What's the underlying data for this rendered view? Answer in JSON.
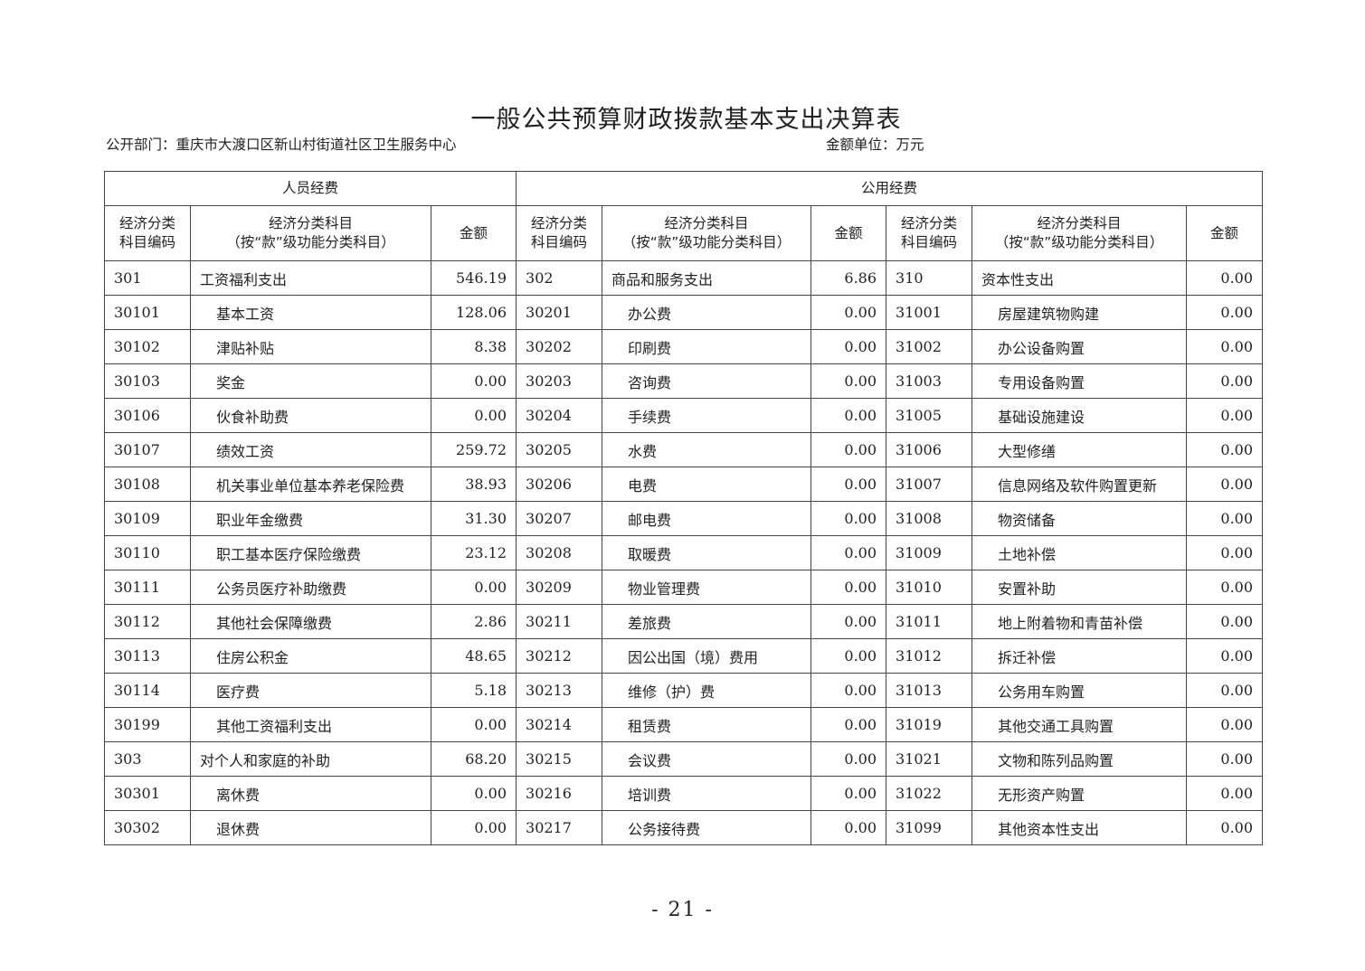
{
  "title": "一般公共预算财政拨款基本支出决算表",
  "department": "公开部门：重庆市大渡口区新山村街道社区卫生服务中心",
  "unit": "金额单位：万元",
  "groups": {
    "personnel": "人员经费",
    "public": "公用经费"
  },
  "headers": {
    "code_line1": "经济分类",
    "code_line2": "科目编码",
    "name_line1": "经济分类科目",
    "name_line2": "（按“款”级功能分类科目）",
    "amount": "金额"
  },
  "rows": [
    [
      [
        "301",
        "工资福利支出",
        "546.19",
        0
      ],
      [
        "302",
        "商品和服务支出",
        "6.86",
        0
      ],
      [
        "310",
        "资本性支出",
        "0.00",
        0
      ]
    ],
    [
      [
        "30101",
        "基本工资",
        "128.06",
        1
      ],
      [
        "30201",
        "办公费",
        "0.00",
        1
      ],
      [
        "31001",
        "房屋建筑物购建",
        "0.00",
        1
      ]
    ],
    [
      [
        "30102",
        "津贴补贴",
        "8.38",
        1
      ],
      [
        "30202",
        "印刷费",
        "0.00",
        1
      ],
      [
        "31002",
        "办公设备购置",
        "0.00",
        1
      ]
    ],
    [
      [
        "30103",
        "奖金",
        "0.00",
        1
      ],
      [
        "30203",
        "咨询费",
        "0.00",
        1
      ],
      [
        "31003",
        "专用设备购置",
        "0.00",
        1
      ]
    ],
    [
      [
        "30106",
        "伙食补助费",
        "0.00",
        1
      ],
      [
        "30204",
        "手续费",
        "0.00",
        1
      ],
      [
        "31005",
        "基础设施建设",
        "0.00",
        1
      ]
    ],
    [
      [
        "30107",
        "绩效工资",
        "259.72",
        1
      ],
      [
        "30205",
        "水费",
        "0.00",
        1
      ],
      [
        "31006",
        "大型修缮",
        "0.00",
        1
      ]
    ],
    [
      [
        "30108",
        "机关事业单位基本养老保险费",
        "38.93",
        1
      ],
      [
        "30206",
        "电费",
        "0.00",
        1
      ],
      [
        "31007",
        "信息网络及软件购置更新",
        "0.00",
        1
      ]
    ],
    [
      [
        "30109",
        "职业年金缴费",
        "31.30",
        1
      ],
      [
        "30207",
        "邮电费",
        "0.00",
        1
      ],
      [
        "31008",
        "物资储备",
        "0.00",
        1
      ]
    ],
    [
      [
        "30110",
        "职工基本医疗保险缴费",
        "23.12",
        1
      ],
      [
        "30208",
        "取暖费",
        "0.00",
        1
      ],
      [
        "31009",
        "土地补偿",
        "0.00",
        1
      ]
    ],
    [
      [
        "30111",
        "公务员医疗补助缴费",
        "0.00",
        1
      ],
      [
        "30209",
        "物业管理费",
        "0.00",
        1
      ],
      [
        "31010",
        "安置补助",
        "0.00",
        1
      ]
    ],
    [
      [
        "30112",
        "其他社会保障缴费",
        "2.86",
        1
      ],
      [
        "30211",
        "差旅费",
        "0.00",
        1
      ],
      [
        "31011",
        "地上附着物和青苗补偿",
        "0.00",
        1
      ]
    ],
    [
      [
        "30113",
        "住房公积金",
        "48.65",
        1
      ],
      [
        "30212",
        "因公出国（境）费用",
        "0.00",
        1
      ],
      [
        "31012",
        "拆迁补偿",
        "0.00",
        1
      ]
    ],
    [
      [
        "30114",
        "医疗费",
        "5.18",
        1
      ],
      [
        "30213",
        "维修（护）费",
        "0.00",
        1
      ],
      [
        "31013",
        "公务用车购置",
        "0.00",
        1
      ]
    ],
    [
      [
        "30199",
        "其他工资福利支出",
        "0.00",
        1
      ],
      [
        "30214",
        "租赁费",
        "0.00",
        1
      ],
      [
        "31019",
        "其他交通工具购置",
        "0.00",
        1
      ]
    ],
    [
      [
        "303",
        "对个人和家庭的补助",
        "68.20",
        0
      ],
      [
        "30215",
        "会议费",
        "0.00",
        1
      ],
      [
        "31021",
        "文物和陈列品购置",
        "0.00",
        1
      ]
    ],
    [
      [
        "30301",
        "离休费",
        "0.00",
        1
      ],
      [
        "30216",
        "培训费",
        "0.00",
        1
      ],
      [
        "31022",
        "无形资产购置",
        "0.00",
        1
      ]
    ],
    [
      [
        "30302",
        "退休费",
        "0.00",
        1
      ],
      [
        "30217",
        "公务接待费",
        "0.00",
        1
      ],
      [
        "31099",
        "其他资本性支出",
        "0.00",
        1
      ]
    ]
  ],
  "page_number": "- 21 -"
}
